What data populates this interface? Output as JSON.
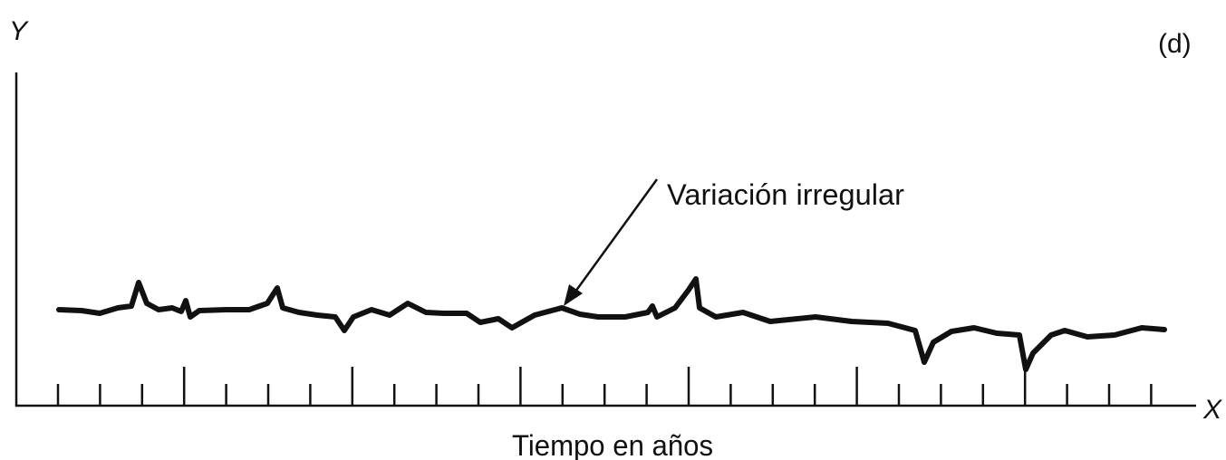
{
  "y_axis_label": "Y",
  "x_axis_label": "X",
  "panel_label": "(d)",
  "annotation": "Variación irregular",
  "x_axis_title": "Tiempo en años"
}
